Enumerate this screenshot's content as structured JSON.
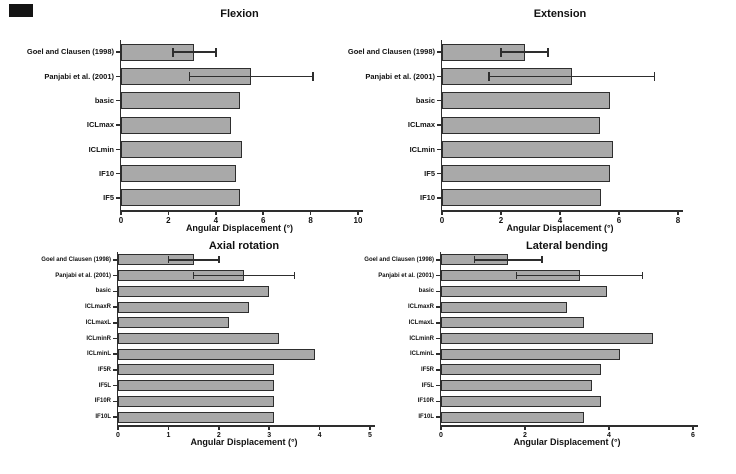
{
  "style": {
    "background": "#ffffff",
    "bar_fill": "#a9a9a9",
    "bar_border": "#2e2e2e",
    "axis_color": "#2e2e2e",
    "error_color": "#2e2e2e",
    "text_color": "#111111",
    "corner_mark_color": "#141414"
  },
  "chart_data": [
    {
      "type": "bar",
      "orientation": "horizontal",
      "title": "Flexion",
      "xlabel": "Angular Displacement (°)",
      "xlim": [
        0,
        10
      ],
      "xticks": [
        0,
        2,
        4,
        6,
        8,
        10
      ],
      "grid": false,
      "legend": null,
      "categories": [
        "Goel and Clausen (1998)",
        "Panjabi et al. (2001)",
        "basic",
        "ICLmax",
        "ICLmin",
        "IF10",
        "IF5"
      ],
      "values": [
        3.1,
        5.5,
        5.0,
        4.65,
        5.1,
        4.85,
        5.0
      ],
      "errors": [
        {
          "low": 2.2,
          "high": 4.0
        },
        {
          "low": 2.9,
          "high": 8.1
        },
        null,
        null,
        null,
        null,
        null
      ]
    },
    {
      "type": "bar",
      "orientation": "horizontal",
      "title": "Extension",
      "xlabel": "Angular Displacement (°)",
      "xlim": [
        0,
        8
      ],
      "xticks": [
        0,
        2,
        4,
        6,
        8
      ],
      "grid": false,
      "legend": null,
      "categories": [
        "Goel and Clausen (1998)",
        "Panjabi et al. (2001)",
        "basic",
        "ICLmax",
        "ICLmin",
        "IF5",
        "IF10"
      ],
      "values": [
        2.8,
        4.4,
        5.7,
        5.35,
        5.8,
        5.7,
        5.4
      ],
      "errors": [
        {
          "low": 2.0,
          "high": 3.6
        },
        {
          "low": 1.6,
          "high": 7.2
        },
        null,
        null,
        null,
        null,
        null
      ]
    },
    {
      "type": "bar",
      "orientation": "horizontal",
      "title": "Axial rotation",
      "xlabel": "Angular Displacement (°)",
      "xlim": [
        0,
        5
      ],
      "xticks": [
        0,
        1,
        2,
        3,
        4,
        5
      ],
      "grid": false,
      "legend": null,
      "categories": [
        "Goel and Clausen (1998)",
        "Panjabi et al. (2001)",
        "basic",
        "ICLmaxR",
        "ICLmaxL",
        "ICLminR",
        "ICLminL",
        "IF5R",
        "IF5L",
        "IF10R",
        "IF10L"
      ],
      "values": [
        1.5,
        2.5,
        3.0,
        2.6,
        2.2,
        3.2,
        3.9,
        3.1,
        3.1,
        3.1,
        3.1
      ],
      "errors": [
        {
          "low": 1.0,
          "high": 2.0
        },
        {
          "low": 1.5,
          "high": 3.5
        },
        null,
        null,
        null,
        null,
        null,
        null,
        null,
        null,
        null
      ]
    },
    {
      "type": "bar",
      "orientation": "horizontal",
      "title": "Lateral bending",
      "xlabel": "Angular Displacement (°)",
      "xlim": [
        0,
        6
      ],
      "xticks": [
        0,
        2,
        4,
        6
      ],
      "grid": false,
      "legend": null,
      "categories": [
        "Goel and Clausen (1998)",
        "Panjabi et al. (2001)",
        "basic",
        "ICLmaxR",
        "ICLmaxL",
        "ICLminR",
        "ICLminL",
        "IF5R",
        "IF5L",
        "IF10R",
        "IF10L"
      ],
      "values": [
        1.6,
        3.3,
        3.95,
        3.0,
        3.4,
        5.05,
        4.25,
        3.8,
        3.6,
        3.8,
        3.4
      ],
      "errors": [
        {
          "low": 0.8,
          "high": 2.4
        },
        {
          "low": 1.8,
          "high": 4.8
        },
        null,
        null,
        null,
        null,
        null,
        null,
        null,
        null,
        null
      ]
    }
  ]
}
